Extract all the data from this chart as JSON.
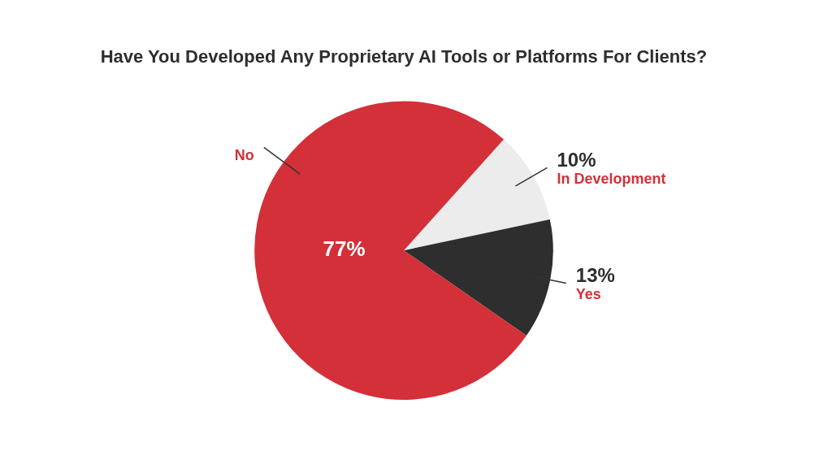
{
  "chart_data": {
    "type": "pie",
    "title": "Have You Developed Any Proprietary AI Tools or Platforms For Clients?",
    "categories": [
      "In Development",
      "Yes",
      "No"
    ],
    "values": [
      10,
      13,
      77
    ],
    "colors": [
      "#ececec",
      "#2e2e2e",
      "#d3303a"
    ],
    "value_labels": [
      "10%",
      "13%",
      "77%"
    ],
    "legend": false
  }
}
